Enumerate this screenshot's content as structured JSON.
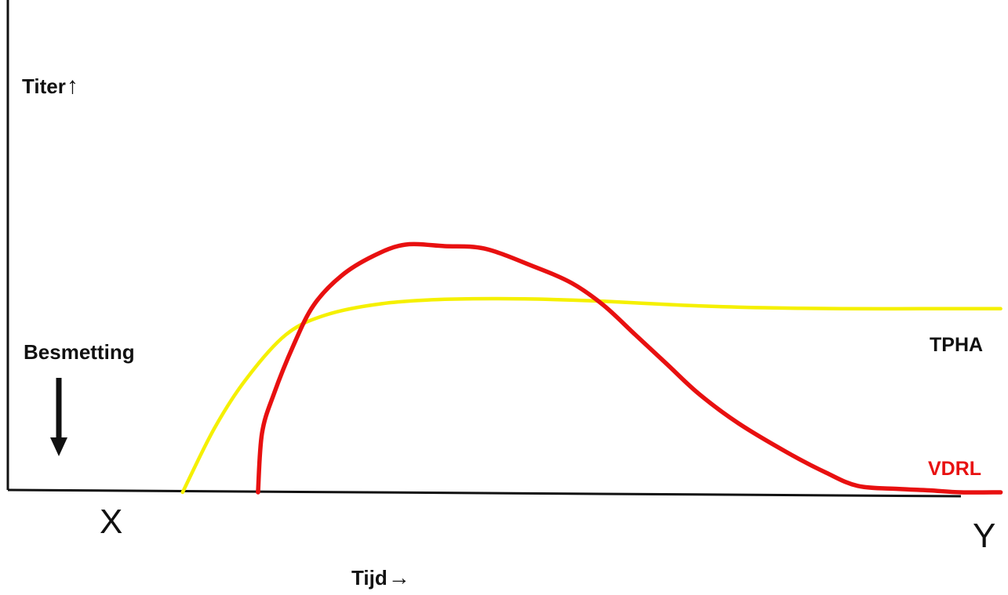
{
  "chart_data": {
    "type": "line",
    "ylabel": "Titer",
    "xlabel": "Tijd",
    "ylabel_arrow": "↑",
    "xlabel_arrow": "→",
    "x_start_label": "X",
    "x_end_label": "Y",
    "annotation": {
      "text": "Besmetting",
      "arrow": "down",
      "x": 0.7
    },
    "xlim": [
      0,
      12
    ],
    "ylim": [
      0,
      10
    ],
    "grid": false,
    "series": [
      {
        "name": "TPHA",
        "color": "#f5f000",
        "points": [
          [
            2.2,
            0
          ],
          [
            2.6,
            1.3
          ],
          [
            3.0,
            2.3
          ],
          [
            3.5,
            3.2
          ],
          [
            4.0,
            3.6
          ],
          [
            4.7,
            3.83
          ],
          [
            5.5,
            3.92
          ],
          [
            6.5,
            3.93
          ],
          [
            7.5,
            3.88
          ],
          [
            8.5,
            3.8
          ],
          [
            9.5,
            3.75
          ],
          [
            10.5,
            3.73
          ],
          [
            11.5,
            3.73
          ],
          [
            12.5,
            3.73
          ]
        ]
      },
      {
        "name": "VDRL",
        "color": "#e81010",
        "points": [
          [
            3.15,
            0
          ],
          [
            3.2,
            1.2
          ],
          [
            3.35,
            2.0
          ],
          [
            3.6,
            3.0
          ],
          [
            3.85,
            3.8
          ],
          [
            4.2,
            4.4
          ],
          [
            4.6,
            4.8
          ],
          [
            5.0,
            5.03
          ],
          [
            5.5,
            5.0
          ],
          [
            6.0,
            4.95
          ],
          [
            6.6,
            4.6
          ],
          [
            7.1,
            4.25
          ],
          [
            7.5,
            3.8
          ],
          [
            7.9,
            3.2
          ],
          [
            8.3,
            2.6
          ],
          [
            8.7,
            2.0
          ],
          [
            9.2,
            1.4
          ],
          [
            9.8,
            0.82
          ],
          [
            10.3,
            0.4
          ],
          [
            10.7,
            0.13
          ],
          [
            11.2,
            0.07
          ],
          [
            11.6,
            0.04
          ],
          [
            12.0,
            0.0
          ],
          [
            12.5,
            0.0
          ]
        ]
      }
    ]
  }
}
